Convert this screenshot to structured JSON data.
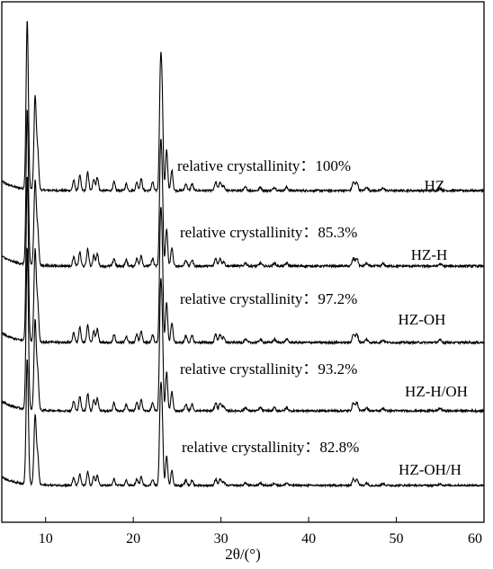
{
  "chart_data": {
    "type": "line",
    "title": "",
    "xlabel": "2θ/(°)",
    "ylabel": "",
    "xlim": [
      5,
      60
    ],
    "xticks": [
      10,
      20,
      30,
      40,
      50,
      60
    ],
    "xtick_labels": [
      "10",
      "20",
      "30",
      "40",
      "50",
      "60"
    ],
    "grid": false,
    "legend": "none",
    "line_color": "#000000",
    "peaks": [
      {
        "x": 7.9,
        "rel": 1.0,
        "w": 0.13
      },
      {
        "x": 8.8,
        "rel": 0.55,
        "w": 0.13
      },
      {
        "x": 9.1,
        "rel": 0.22,
        "w": 0.12
      },
      {
        "x": 13.2,
        "rel": 0.06,
        "w": 0.12
      },
      {
        "x": 13.9,
        "rel": 0.09,
        "w": 0.12
      },
      {
        "x": 14.8,
        "rel": 0.11,
        "w": 0.12
      },
      {
        "x": 15.5,
        "rel": 0.07,
        "w": 0.12
      },
      {
        "x": 15.9,
        "rel": 0.08,
        "w": 0.12
      },
      {
        "x": 17.8,
        "rel": 0.05,
        "w": 0.12
      },
      {
        "x": 19.2,
        "rel": 0.04,
        "w": 0.12
      },
      {
        "x": 20.4,
        "rel": 0.05,
        "w": 0.12
      },
      {
        "x": 20.9,
        "rel": 0.07,
        "w": 0.12
      },
      {
        "x": 22.2,
        "rel": 0.05,
        "w": 0.12
      },
      {
        "x": 23.1,
        "rel": 0.7,
        "w": 0.12
      },
      {
        "x": 23.3,
        "rel": 0.45,
        "w": 0.11
      },
      {
        "x": 23.8,
        "rel": 0.24,
        "w": 0.12
      },
      {
        "x": 24.4,
        "rel": 0.12,
        "w": 0.12
      },
      {
        "x": 26.0,
        "rel": 0.04,
        "w": 0.13
      },
      {
        "x": 26.7,
        "rel": 0.04,
        "w": 0.13
      },
      {
        "x": 29.4,
        "rel": 0.05,
        "w": 0.13
      },
      {
        "x": 29.9,
        "rel": 0.05,
        "w": 0.13
      },
      {
        "x": 30.3,
        "rel": 0.03,
        "w": 0.13
      },
      {
        "x": 32.8,
        "rel": 0.02,
        "w": 0.14
      },
      {
        "x": 34.5,
        "rel": 0.02,
        "w": 0.14
      },
      {
        "x": 36.1,
        "rel": 0.02,
        "w": 0.14
      },
      {
        "x": 37.5,
        "rel": 0.02,
        "w": 0.14
      },
      {
        "x": 45.1,
        "rel": 0.05,
        "w": 0.14
      },
      {
        "x": 45.5,
        "rel": 0.05,
        "w": 0.14
      },
      {
        "x": 46.6,
        "rel": 0.02,
        "w": 0.14
      },
      {
        "x": 48.5,
        "rel": 0.015,
        "w": 0.15
      },
      {
        "x": 55.0,
        "rel": 0.015,
        "w": 0.15
      }
    ],
    "series": [
      {
        "name": "HZ",
        "scale": 1.0,
        "annotation": "relative crystallinity：100%"
      },
      {
        "name": "HZ-H",
        "scale": 0.853,
        "annotation": "relative crystallinity：85.3%"
      },
      {
        "name": "HZ-OH",
        "scale": 0.972,
        "annotation": "relative crystallinity：97.2%"
      },
      {
        "name": "HZ-H/OH",
        "scale": 0.932,
        "annotation": "relative crystallinity：93.2%"
      },
      {
        "name": "HZ-OH/H",
        "scale": 0.828,
        "annotation": "relative crystallinity：82.8%"
      }
    ]
  }
}
